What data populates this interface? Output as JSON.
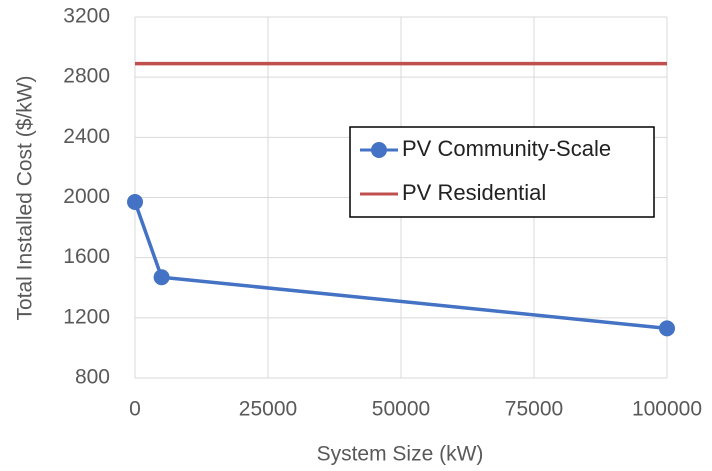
{
  "chart_data": {
    "type": "line",
    "x_label": "System Size (kW)",
    "y_label": "Total Installed Cost ($/kW)",
    "xlim": [
      0,
      100000
    ],
    "xticks": [
      0,
      25000,
      50000,
      75000,
      100000
    ],
    "ylim": [
      800,
      3200
    ],
    "yticks": [
      800,
      1200,
      1600,
      2000,
      2400,
      2800,
      3200
    ],
    "grid": true,
    "legend": "upper right",
    "series": [
      {
        "name": "PV Community-Scale",
        "color": "#4472c4",
        "marker": "circle",
        "x": [
          0,
          5000,
          100000
        ],
        "values": [
          1970,
          1470,
          1130
        ]
      },
      {
        "name": "PV Residential",
        "color": "#c0504d",
        "marker": "none",
        "x": [
          0,
          100000
        ],
        "values": [
          2890,
          2890
        ]
      }
    ]
  }
}
